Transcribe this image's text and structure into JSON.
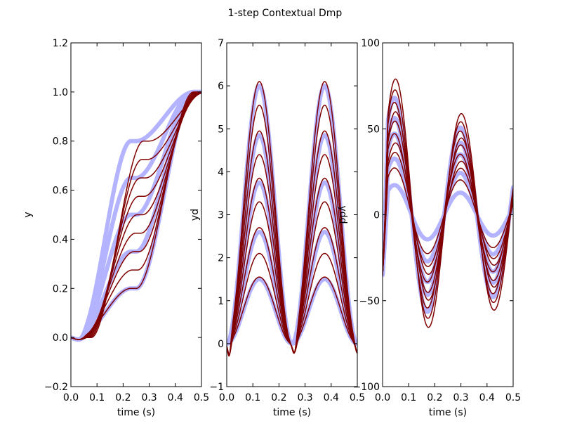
{
  "figure": {
    "title": "1-step Contextual Dmp"
  },
  "chart_data": [
    {
      "type": "line",
      "title": "",
      "xlabel": "time (s)",
      "ylabel": "y",
      "xlim": [
        0,
        0.5
      ],
      "ylim": [
        -0.2,
        1.2
      ],
      "xticks": [
        "0.0",
        "0.1",
        "0.2",
        "0.3",
        "0.4",
        "0.5"
      ],
      "yticks": [
        "−0.2",
        "0.0",
        "0.2",
        "0.4",
        "0.6",
        "0.8",
        "1.0",
        "1.2"
      ],
      "reference_color": "#b3b3ff",
      "trajectory_color": "#800000",
      "reference_plateaus": [
        0.2,
        0.35,
        0.5,
        0.65,
        0.8
      ],
      "trajectory_plateaus": [
        0.2,
        0.275,
        0.35,
        0.425,
        0.5,
        0.575,
        0.65,
        0.725,
        0.8
      ],
      "shape": "smooth step from 0.0 to a plateau at t = 0.20–0.30 s, then rise to 1.0 at t = 0.5 s"
    },
    {
      "type": "line",
      "title": "",
      "xlabel": "time (s)",
      "ylabel": "yd",
      "xlim": [
        0,
        0.5
      ],
      "ylim": [
        -1,
        7
      ],
      "xticks": [
        "0.0",
        "0.1",
        "0.2",
        "0.3",
        "0.4",
        "0.5"
      ],
      "yticks": [
        "−1",
        "0",
        "1",
        "2",
        "3",
        "4",
        "5",
        "6",
        "7"
      ],
      "reference_color": "#b3b3ff",
      "trajectory_color": "#800000",
      "reference_peaks": [
        1.5,
        2.6,
        3.75,
        4.85,
        6.0
      ],
      "trajectory_peaks": [
        1.55,
        2.1,
        2.7,
        3.3,
        3.85,
        4.4,
        4.95,
        5.55,
        6.1
      ],
      "peak_times": [
        0.125,
        0.375
      ],
      "shape": "two velocity humps per trajectory, zero at t = 0, 0.25 and 0.5 s"
    },
    {
      "type": "line",
      "title": "",
      "xlabel": "time (s)",
      "ylabel": "ydd",
      "xlim": [
        0,
        0.5
      ],
      "ylim": [
        -100,
        100
      ],
      "xticks": [
        "0.0",
        "0.1",
        "0.2",
        "0.3",
        "0.4",
        "0.5"
      ],
      "yticks": [
        "−100",
        "−50",
        "0",
        "50",
        "100"
      ],
      "reference_color": "#b3b3ff",
      "trajectory_color": "#800000",
      "reference_amplitudes": [
        19,
        36,
        52,
        62,
        75
      ],
      "trajectory_amplitudes": [
        30,
        40,
        46,
        52,
        60,
        66,
        72,
        80,
        87
      ],
      "shape": "acceleration oscillating through zero at t = 0.125, 0.25 and 0.375 s"
    }
  ]
}
